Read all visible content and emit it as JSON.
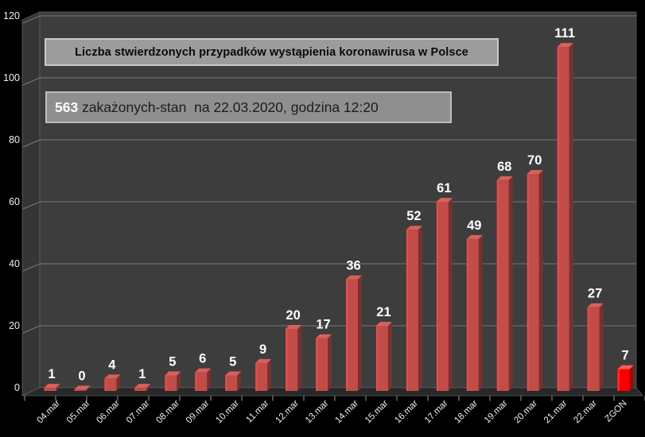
{
  "chart_data": {
    "type": "bar",
    "title": "Liczba stwierdzonych przypadków wystąpienia koronawirusa w Polsce",
    "subtitle": {
      "highlight": "563",
      "text": " zakażonych-stan  na 22.03.2020, godzina 12:20"
    },
    "categories": [
      "04.mar",
      "05.mar",
      "06.mar",
      "07.mar",
      "08.mar",
      "09.mar",
      "10.mar",
      "11.mar",
      "12.mar",
      "13.mar",
      "14.mar",
      "15.mar",
      "16.mar",
      "17.mar",
      "18.mar",
      "19.mar",
      "20.mar",
      "21.mar",
      "22.mar",
      "ZGON"
    ],
    "values": [
      1,
      0,
      4,
      1,
      5,
      6,
      5,
      9,
      20,
      17,
      36,
      21,
      52,
      61,
      49,
      68,
      70,
      111,
      27,
      7
    ],
    "xlabel": "",
    "ylabel": "",
    "ylim": [
      0,
      120
    ],
    "yticks": [
      0,
      20,
      40,
      60,
      80,
      100,
      120
    ],
    "grid": true,
    "legend": "none",
    "style_3d": true,
    "colors": {
      "page_background": "#000000",
      "wall": "#3d3d3d",
      "side_wall": "#353535",
      "floor": "#282828",
      "wall_edge": "#5f5f5f",
      "gridline": "#787878",
      "axis_text": "#f0f0f0",
      "value_label": "#ffffff",
      "bar_face": "#c44c48",
      "bar_top": "#d6625c",
      "bar_side": "#7c2f2c",
      "last_bar_face": "#fa0000",
      "last_bar_top": "#ff5c5c",
      "last_bar_side": "#b50000",
      "title_bg": "#9c9c9c",
      "subtitle_bg": "#8f8f8f"
    }
  }
}
